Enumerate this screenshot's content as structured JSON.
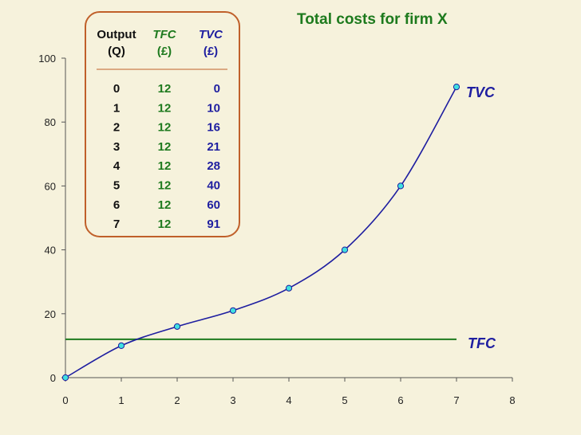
{
  "colors": {
    "background": "#f6f2dc",
    "tfc": "#1e7a1e",
    "tvc": "#1e1ea0",
    "marker_fill": "#40e0e0",
    "table_border": "#c0602a",
    "axis": "#555555"
  },
  "chart_data": {
    "type": "line",
    "title": "Total costs for firm X",
    "xlabel": "",
    "ylabel": "",
    "xlim": [
      0,
      8
    ],
    "ylim": [
      0,
      100
    ],
    "x_ticks": [
      "0",
      "1",
      "2",
      "3",
      "4",
      "5",
      "6",
      "7",
      "8"
    ],
    "y_ticks": [
      "0",
      "20",
      "40",
      "60",
      "80",
      "100"
    ],
    "grid": false,
    "series": [
      {
        "name": "TFC",
        "x": [
          0,
          7
        ],
        "y": [
          12,
          12
        ],
        "markers": false
      },
      {
        "name": "TVC",
        "x": [
          0,
          1,
          2,
          3,
          4,
          5,
          6,
          7
        ],
        "y": [
          0,
          10,
          16,
          21,
          28,
          40,
          60,
          91
        ],
        "markers": true
      }
    ]
  },
  "table": {
    "headers": {
      "output": "Output",
      "output_unit": "(Q)",
      "tfc": "TFC",
      "tfc_unit": "(£)",
      "tvc": "TVC",
      "tvc_unit": "(£)"
    },
    "rows": [
      {
        "q": "0",
        "tfc": "12",
        "tvc": "0"
      },
      {
        "q": "1",
        "tfc": "12",
        "tvc": "10"
      },
      {
        "q": "2",
        "tfc": "12",
        "tvc": "16"
      },
      {
        "q": "3",
        "tfc": "12",
        "tvc": "21"
      },
      {
        "q": "4",
        "tfc": "12",
        "tvc": "28"
      },
      {
        "q": "5",
        "tfc": "12",
        "tvc": "40"
      },
      {
        "q": "6",
        "tfc": "12",
        "tvc": "60"
      },
      {
        "q": "7",
        "tfc": "12",
        "tvc": "91"
      }
    ]
  }
}
